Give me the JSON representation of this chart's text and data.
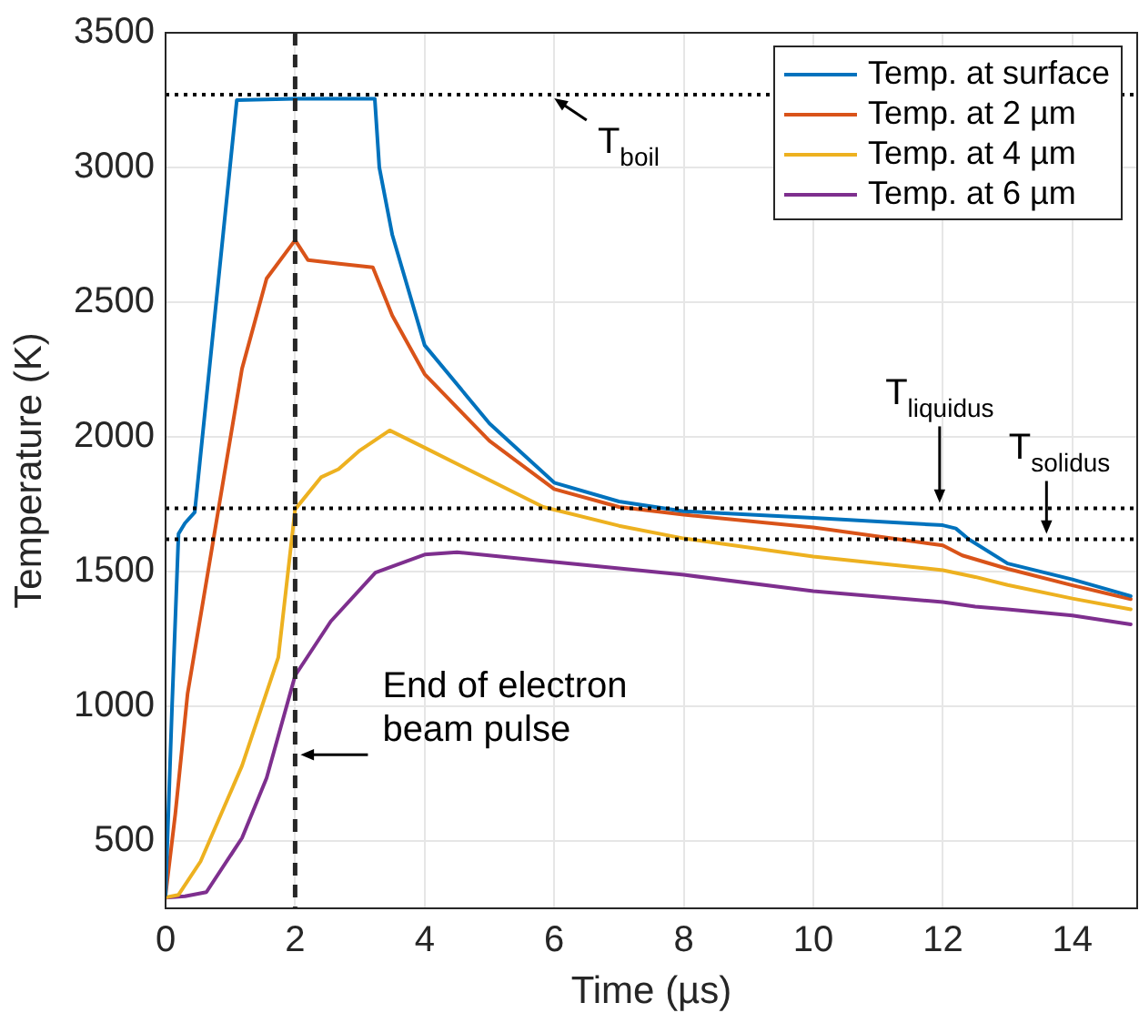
{
  "chart_data": {
    "type": "line",
    "xlabel": "Time (µs)",
    "ylabel": "Temperature (K)",
    "xlim": [
      0,
      15
    ],
    "xticks": [
      0,
      2,
      4,
      6,
      8,
      10,
      12,
      14
    ],
    "ylim": [
      250,
      3500
    ],
    "yticks": [
      500,
      1000,
      1500,
      2000,
      2500,
      3000,
      3500
    ],
    "grid": true,
    "legend": "top right",
    "marker": "none",
    "line_style": "solid",
    "series": [
      {
        "name": "Temp. at surface",
        "color": "#0072bd",
        "x": [
          0,
          0.1,
          0.2,
          0.3,
          0.45,
          1.1,
          2,
          3.23,
          3.3,
          3.5,
          4,
          5,
          6,
          7,
          8,
          10,
          12,
          12.2,
          12.4,
          13,
          14,
          14.9
        ],
        "values": [
          300,
          1000,
          1640,
          1680,
          1720,
          3250,
          3255,
          3255,
          3000,
          2750,
          2340,
          2050,
          1830,
          1760,
          1724,
          1699,
          1672,
          1660,
          1620,
          1530,
          1471,
          1409
        ]
      },
      {
        "name": "Temp. at 2 µm",
        "color": "#d95319",
        "x": [
          0,
          0.15,
          0.34,
          0.9,
          1.18,
          1.56,
          2,
          2.2,
          2.68,
          3.2,
          3.5,
          4,
          5,
          6,
          7,
          8,
          10,
          12,
          12.3,
          13,
          14,
          14.9
        ],
        "values": [
          300,
          600,
          1047,
          1851,
          2253,
          2588,
          2730,
          2656,
          2643,
          2629,
          2450,
          2233,
          1985,
          1806,
          1740,
          1711,
          1664,
          1597,
          1560,
          1510,
          1449,
          1398
        ]
      },
      {
        "name": "Temp. at 4 µm",
        "color": "#edb120",
        "x": [
          0,
          0.2,
          0.54,
          1.18,
          1.74,
          2,
          2.4,
          2.67,
          3,
          3.46,
          4,
          4.53,
          5.83,
          7,
          8,
          10,
          12,
          12.5,
          13,
          14,
          14.9
        ],
        "values": [
          290,
          300,
          424,
          779,
          1181,
          1731,
          1850,
          1880,
          1950,
          2024,
          1960,
          1896,
          1740,
          1670,
          1623,
          1556,
          1505,
          1480,
          1450,
          1400,
          1360
        ]
      },
      {
        "name": "Temp. at 6 µm",
        "color": "#7e2f8e",
        "x": [
          0,
          0.3,
          0.63,
          1.18,
          1.56,
          2,
          2.55,
          3.24,
          4,
          4.5,
          5.83,
          8,
          10,
          12,
          12.5,
          13,
          14,
          14.9
        ],
        "values": [
          290,
          295,
          310,
          511,
          734,
          1114,
          1315,
          1496,
          1563,
          1572,
          1540,
          1488,
          1427,
          1387,
          1370,
          1360,
          1337,
          1304
        ]
      }
    ],
    "ref_lines": [
      {
        "axis": "y",
        "value": 3270,
        "label": "T$_{boil}$",
        "color": "#000000",
        "line_style": "dotted"
      },
      {
        "axis": "y",
        "value": 1735,
        "label": "T$_{liquidus}$",
        "color": "#000000",
        "line_style": "dotted"
      },
      {
        "axis": "y",
        "value": 1620,
        "label": "T$_{solidus}$",
        "color": "#000000",
        "line_style": "dotted"
      },
      {
        "axis": "x",
        "value": 2,
        "label": "End of electron beam pulse",
        "color": "#262626",
        "line_style": "dashed"
      }
    ]
  }
}
